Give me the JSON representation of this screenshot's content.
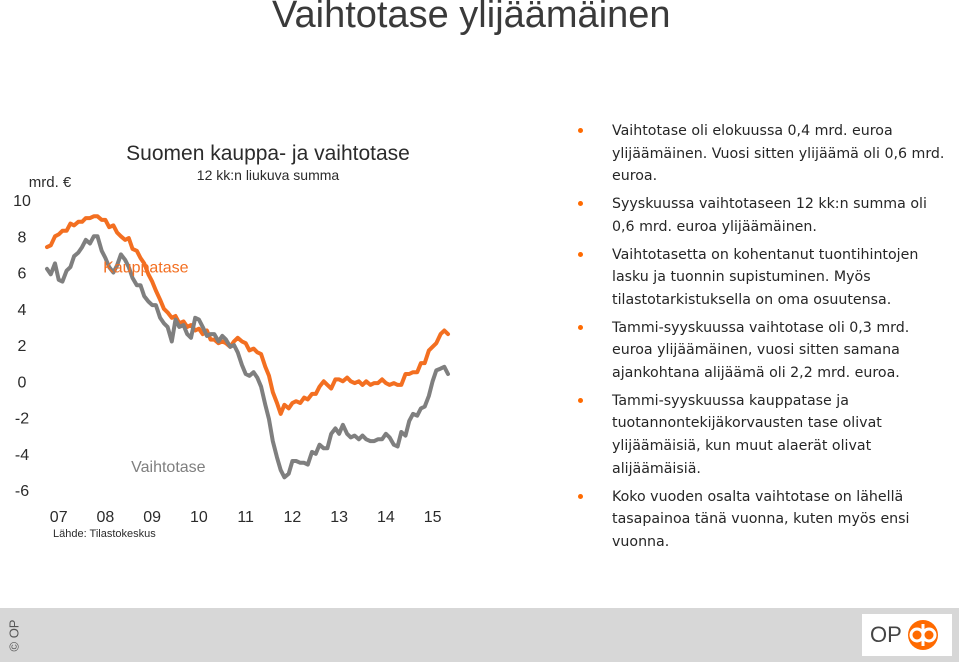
{
  "page": {
    "title": "Vaihtotase ylijäämäinen",
    "copyright": "© OP",
    "logo_text": "OP"
  },
  "bullets": [
    "Vaihtotase oli elokuussa 0,4 mrd. euroa ylijäämäinen. Vuosi sitten ylijäämä oli 0,6 mrd. euroa.",
    "Syyskuussa vaihtotaseen 12 kk:n summa oli 0,6 mrd. euroa ylijäämäinen.",
    "Vaihtotasetta on kohentanut tuontihintojen lasku ja tuonnin supistuminen. Myös tilastotarkistuksella on oma osuutensa.",
    "Tammi-syyskuussa vaihtotase oli 0,3 mrd. euroa ylijäämäinen, vuosi sitten samana ajankohtana alijäämä oli 2,2 mrd. euroa.",
    "Tammi-syyskuussa kauppatase ja tuotannontekijäkorvausten tase olivat ylijäämäisiä, kun muut alaerät olivat alijäämäisiä.",
    "Koko vuoden osalta vaihtotase on lähellä tasapainoa tänä vuonna, kuten myös ensi vuonna."
  ],
  "chart_data": {
    "type": "line",
    "title": "Suomen kauppa- ja vaihtotase",
    "subtitle": "12 kk:n liukuva summa",
    "ylabel": "mrd. €",
    "source": "Lähde: Tilastokeskus",
    "ylim": [
      -6,
      10
    ],
    "yticks": [
      10,
      8,
      6,
      4,
      2,
      0,
      -2,
      -4,
      -6
    ],
    "xlim": [
      2006.6,
      2015.8
    ],
    "xticks": [
      {
        "x": 2007,
        "label": "07"
      },
      {
        "x": 2008,
        "label": "08"
      },
      {
        "x": 2009,
        "label": "09"
      },
      {
        "x": 2010,
        "label": "10"
      },
      {
        "x": 2011,
        "label": "11"
      },
      {
        "x": 2012,
        "label": "12"
      },
      {
        "x": 2013,
        "label": "13"
      },
      {
        "x": 2014,
        "label": "14"
      },
      {
        "x": 2015,
        "label": "15"
      }
    ],
    "grid": false,
    "colors": {
      "Kauppatase": "#f36f21",
      "Vaihtotase": "#7f7f7f"
    },
    "series": [
      {
        "name": "Kauppatase",
        "label_pos": [
          2007.95,
          6.0
        ],
        "points": [
          [
            2006.75,
            7.4
          ],
          [
            2006.83,
            7.5
          ],
          [
            2006.92,
            8.0
          ],
          [
            2007.0,
            8.1
          ],
          [
            2007.08,
            8.3
          ],
          [
            2007.17,
            8.3
          ],
          [
            2007.25,
            8.7
          ],
          [
            2007.33,
            8.6
          ],
          [
            2007.42,
            8.8
          ],
          [
            2007.5,
            8.8
          ],
          [
            2007.58,
            9.0
          ],
          [
            2007.67,
            9.0
          ],
          [
            2007.75,
            9.1
          ],
          [
            2007.83,
            9.1
          ],
          [
            2007.92,
            8.9
          ],
          [
            2008.0,
            8.9
          ],
          [
            2008.08,
            8.5
          ],
          [
            2008.17,
            8.6
          ],
          [
            2008.25,
            8.2
          ],
          [
            2008.33,
            8.0
          ],
          [
            2008.42,
            7.8
          ],
          [
            2008.5,
            7.9
          ],
          [
            2008.58,
            7.3
          ],
          [
            2008.67,
            7.2
          ],
          [
            2008.75,
            6.8
          ],
          [
            2008.83,
            6.5
          ],
          [
            2008.92,
            5.9
          ],
          [
            2009.0,
            5.5
          ],
          [
            2009.08,
            5.0
          ],
          [
            2009.17,
            4.5
          ],
          [
            2009.25,
            4.0
          ],
          [
            2009.33,
            3.8
          ],
          [
            2009.42,
            3.5
          ],
          [
            2009.5,
            3.6
          ],
          [
            2009.58,
            3.2
          ],
          [
            2009.67,
            3.3
          ],
          [
            2009.75,
            3.0
          ],
          [
            2009.83,
            3.1
          ],
          [
            2009.92,
            2.8
          ],
          [
            2010.0,
            2.9
          ],
          [
            2010.08,
            2.6
          ],
          [
            2010.17,
            2.8
          ],
          [
            2010.25,
            2.3
          ],
          [
            2010.33,
            2.3
          ],
          [
            2010.42,
            2.1
          ],
          [
            2010.5,
            2.2
          ],
          [
            2010.58,
            2.1
          ],
          [
            2010.67,
            1.9
          ],
          [
            2010.75,
            2.2
          ],
          [
            2010.83,
            2.4
          ],
          [
            2010.92,
            2.2
          ],
          [
            2011.0,
            2.1
          ],
          [
            2011.08,
            1.7
          ],
          [
            2011.17,
            1.8
          ],
          [
            2011.25,
            1.6
          ],
          [
            2011.33,
            1.5
          ],
          [
            2011.42,
            0.8
          ],
          [
            2011.5,
            0.3
          ],
          [
            2011.58,
            -0.6
          ],
          [
            2011.67,
            -1.2
          ],
          [
            2011.75,
            -1.8
          ],
          [
            2011.83,
            -1.3
          ],
          [
            2011.92,
            -1.5
          ],
          [
            2012.0,
            -1.2
          ],
          [
            2012.08,
            -1.1
          ],
          [
            2012.17,
            -1.2
          ],
          [
            2012.25,
            -0.9
          ],
          [
            2012.33,
            -1.0
          ],
          [
            2012.42,
            -0.7
          ],
          [
            2012.5,
            -0.7
          ],
          [
            2012.58,
            -0.3
          ],
          [
            2012.67,
            0.0
          ],
          [
            2012.75,
            -0.2
          ],
          [
            2012.83,
            -0.4
          ],
          [
            2012.92,
            0.1
          ],
          [
            2013.0,
            0.1
          ],
          [
            2013.08,
            0.0
          ],
          [
            2013.17,
            0.2
          ],
          [
            2013.25,
            0.0
          ],
          [
            2013.33,
            -0.1
          ],
          [
            2013.42,
            0.0
          ],
          [
            2013.5,
            -0.2
          ],
          [
            2013.58,
            0.0
          ],
          [
            2013.67,
            -0.2
          ],
          [
            2013.75,
            -0.1
          ],
          [
            2013.83,
            -0.1
          ],
          [
            2013.92,
            0.1
          ],
          [
            2014.0,
            -0.1
          ],
          [
            2014.08,
            -0.2
          ],
          [
            2014.17,
            -0.1
          ],
          [
            2014.25,
            -0.2
          ],
          [
            2014.33,
            -0.2
          ],
          [
            2014.42,
            0.4
          ],
          [
            2014.5,
            0.4
          ],
          [
            2014.58,
            0.5
          ],
          [
            2014.67,
            0.5
          ],
          [
            2014.75,
            1.0
          ],
          [
            2014.83,
            1.0
          ],
          [
            2014.92,
            1.7
          ],
          [
            2015.0,
            1.9
          ],
          [
            2015.08,
            2.1
          ],
          [
            2015.17,
            2.6
          ],
          [
            2015.25,
            2.8
          ],
          [
            2015.33,
            2.6
          ]
        ]
      },
      {
        "name": "Vaihtotase",
        "label_pos": [
          2008.55,
          -5.0
        ],
        "points": [
          [
            2006.75,
            6.2
          ],
          [
            2006.83,
            5.9
          ],
          [
            2006.92,
            6.5
          ],
          [
            2007.0,
            5.6
          ],
          [
            2007.08,
            5.5
          ],
          [
            2007.17,
            6.1
          ],
          [
            2007.25,
            6.3
          ],
          [
            2007.33,
            6.9
          ],
          [
            2007.42,
            7.1
          ],
          [
            2007.5,
            7.4
          ],
          [
            2007.58,
            7.8
          ],
          [
            2007.67,
            7.6
          ],
          [
            2007.75,
            8.0
          ],
          [
            2007.83,
            8.0
          ],
          [
            2007.92,
            7.2
          ],
          [
            2008.0,
            6.8
          ],
          [
            2008.08,
            6.3
          ],
          [
            2008.17,
            6.0
          ],
          [
            2008.25,
            6.4
          ],
          [
            2008.33,
            7.0
          ],
          [
            2008.42,
            6.7
          ],
          [
            2008.5,
            6.3
          ],
          [
            2008.58,
            5.7
          ],
          [
            2008.67,
            5.3
          ],
          [
            2008.75,
            5.3
          ],
          [
            2008.83,
            4.7
          ],
          [
            2008.92,
            4.4
          ],
          [
            2009.0,
            4.2
          ],
          [
            2009.08,
            4.2
          ],
          [
            2009.17,
            3.5
          ],
          [
            2009.25,
            3.2
          ],
          [
            2009.33,
            3.0
          ],
          [
            2009.42,
            2.2
          ],
          [
            2009.5,
            3.4
          ],
          [
            2009.58,
            3.0
          ],
          [
            2009.67,
            3.1
          ],
          [
            2009.75,
            2.6
          ],
          [
            2009.83,
            2.4
          ],
          [
            2009.92,
            3.5
          ],
          [
            2010.0,
            3.4
          ],
          [
            2010.08,
            3.0
          ],
          [
            2010.17,
            2.5
          ],
          [
            2010.25,
            2.6
          ],
          [
            2010.33,
            2.6
          ],
          [
            2010.42,
            2.2
          ],
          [
            2010.5,
            2.5
          ],
          [
            2010.58,
            2.3
          ],
          [
            2010.67,
            1.9
          ],
          [
            2010.75,
            2.0
          ],
          [
            2010.83,
            1.6
          ],
          [
            2010.92,
            0.9
          ],
          [
            2011.0,
            0.4
          ],
          [
            2011.08,
            0.3
          ],
          [
            2011.17,
            0.5
          ],
          [
            2011.25,
            0.2
          ],
          [
            2011.33,
            -0.3
          ],
          [
            2011.42,
            -1.3
          ],
          [
            2011.5,
            -2.1
          ],
          [
            2011.58,
            -3.3
          ],
          [
            2011.67,
            -4.2
          ],
          [
            2011.75,
            -4.9
          ],
          [
            2011.83,
            -5.3
          ],
          [
            2011.92,
            -5.1
          ],
          [
            2012.0,
            -4.4
          ],
          [
            2012.08,
            -4.4
          ],
          [
            2012.17,
            -4.5
          ],
          [
            2012.25,
            -4.5
          ],
          [
            2012.33,
            -4.6
          ],
          [
            2012.42,
            -3.9
          ],
          [
            2012.5,
            -4.0
          ],
          [
            2012.58,
            -3.5
          ],
          [
            2012.67,
            -3.7
          ],
          [
            2012.75,
            -3.7
          ],
          [
            2012.83,
            -2.9
          ],
          [
            2012.92,
            -2.6
          ],
          [
            2013.0,
            -2.9
          ],
          [
            2013.08,
            -2.4
          ],
          [
            2013.17,
            -2.9
          ],
          [
            2013.25,
            -3.1
          ],
          [
            2013.33,
            -3.0
          ],
          [
            2013.42,
            -3.2
          ],
          [
            2013.5,
            -3.0
          ],
          [
            2013.58,
            -3.2
          ],
          [
            2013.67,
            -3.3
          ],
          [
            2013.75,
            -3.3
          ],
          [
            2013.83,
            -3.2
          ],
          [
            2013.92,
            -3.2
          ],
          [
            2014.0,
            -2.9
          ],
          [
            2014.08,
            -3.1
          ],
          [
            2014.17,
            -3.5
          ],
          [
            2014.25,
            -3.6
          ],
          [
            2014.33,
            -2.8
          ],
          [
            2014.42,
            -3.0
          ],
          [
            2014.5,
            -2.2
          ],
          [
            2014.58,
            -1.8
          ],
          [
            2014.67,
            -1.9
          ],
          [
            2014.75,
            -1.5
          ],
          [
            2014.83,
            -1.4
          ],
          [
            2014.92,
            -0.8
          ],
          [
            2015.0,
            0.0
          ],
          [
            2015.08,
            0.6
          ],
          [
            2015.17,
            0.7
          ],
          [
            2015.25,
            0.8
          ],
          [
            2015.33,
            0.4
          ]
        ]
      }
    ]
  }
}
